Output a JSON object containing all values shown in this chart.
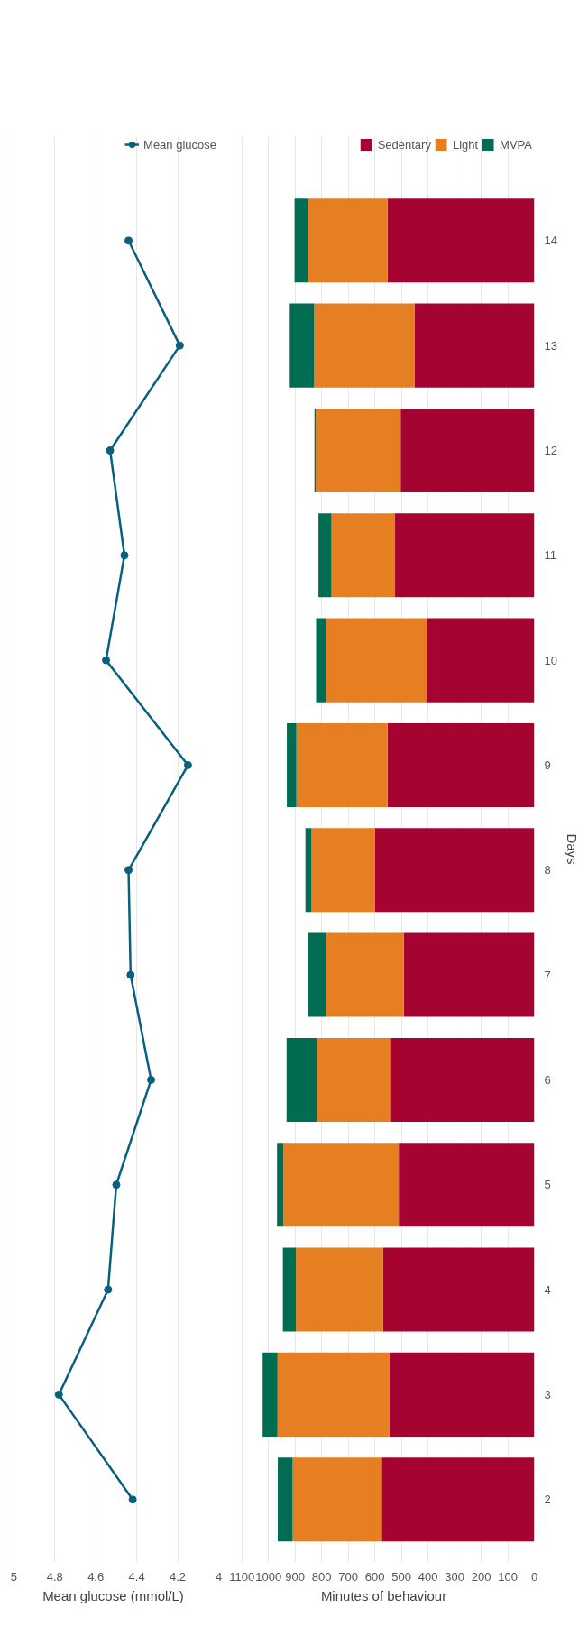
{
  "chart_data": [
    {
      "type": "line",
      "orientation": "horizontal",
      "xlabel": "Mean glucose (mmol/L)",
      "categories": [
        "14",
        "13",
        "12",
        "11",
        "10",
        "9",
        "8",
        "7",
        "6",
        "5",
        "4",
        "3",
        "2"
      ],
      "series": [
        {
          "name": "Mean glucose",
          "color": "#08607f",
          "values": [
            4.44,
            4.19,
            4.53,
            4.46,
            4.55,
            4.15,
            4.44,
            4.43,
            4.33,
            4.5,
            4.54,
            4.78,
            4.42
          ]
        }
      ],
      "xlim": [
        5,
        4
      ],
      "xticks": [
        5,
        4.8,
        4.6,
        4.4,
        4.2,
        4
      ],
      "grid": "x",
      "marker": "circle",
      "line_style": "solid",
      "legend": "top right",
      "tick_labels": "x"
    },
    {
      "type": "bar",
      "orientation": "horizontal",
      "stacked": true,
      "xlabel": "Minutes of behaviour",
      "ylabel": "Days",
      "categories": [
        "14",
        "13",
        "12",
        "11",
        "10",
        "9",
        "8",
        "7",
        "6",
        "5",
        "4",
        "3",
        "2"
      ],
      "series": [
        {
          "name": "Sedentary",
          "color": "#a50330",
          "values": [
            552,
            451,
            503,
            524,
            405,
            552,
            600,
            491,
            540,
            510,
            569,
            546,
            574
          ]
        },
        {
          "name": "Light",
          "color": "#e67e22",
          "values": [
            299,
            377,
            319,
            239,
            380,
            343,
            238,
            293,
            279,
            434,
            328,
            420,
            335
          ]
        },
        {
          "name": "MVPA",
          "color": "#006d53",
          "values": [
            51,
            92,
            5,
            49,
            36,
            36,
            23,
            69,
            113,
            24,
            49,
            56,
            56
          ]
        }
      ],
      "xlim": [
        1100,
        0
      ],
      "xticks": [
        1100,
        1000,
        900,
        800,
        700,
        600,
        500,
        400,
        300,
        200,
        100,
        0
      ],
      "grid": "x",
      "legend": "top right"
    }
  ]
}
